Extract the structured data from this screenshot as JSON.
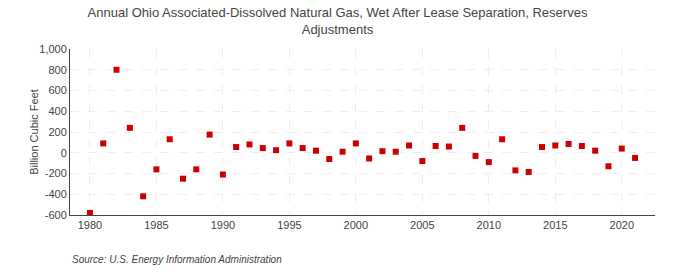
{
  "chart_data": {
    "type": "scatter",
    "title": "Annual Ohio Associated-Dissolved Natural Gas, Wet After Lease Separation, Reserves\nAdjustments",
    "ylabel": "Billion Cubic Feet",
    "annotations": [
      "Source: U.S. Energy Information Administration"
    ],
    "x": [
      1980,
      1981,
      1982,
      1983,
      1984,
      1985,
      1986,
      1987,
      1988,
      1989,
      1990,
      1991,
      1992,
      1993,
      1994,
      1995,
      1996,
      1997,
      1998,
      1999,
      2000,
      2001,
      2002,
      2003,
      2004,
      2005,
      2006,
      2007,
      2008,
      2009,
      2010,
      2011,
      2012,
      2013,
      2014,
      2015,
      2016,
      2017,
      2018,
      2019,
      2020,
      2021
    ],
    "values": [
      -580,
      90,
      800,
      240,
      -420,
      -160,
      130,
      -250,
      -160,
      175,
      -210,
      55,
      80,
      45,
      25,
      90,
      45,
      20,
      -60,
      10,
      90,
      -55,
      15,
      10,
      70,
      -80,
      65,
      60,
      240,
      -30,
      -90,
      130,
      -170,
      -185,
      55,
      70,
      85,
      65,
      20,
      -130,
      40,
      -50
    ],
    "color": "#cc0000",
    "marker": "square",
    "xlim": [
      1978.5,
      2022.5
    ],
    "xticks": [
      1980,
      1985,
      1990,
      1995,
      2000,
      2005,
      2010,
      2015,
      2020
    ],
    "ylim": [
      -600,
      1000
    ],
    "yticks": [
      -600,
      -400,
      -200,
      0,
      200,
      400,
      600,
      800,
      {
        "value": 1000,
        "label": "1,000"
      }
    ],
    "grid": true
  }
}
